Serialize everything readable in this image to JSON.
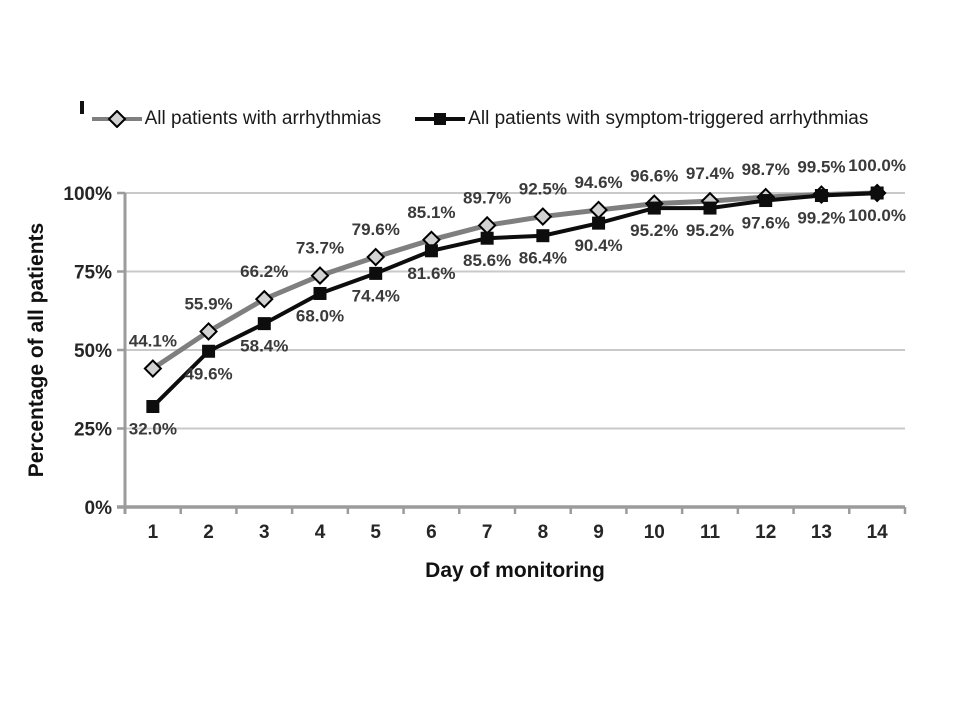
{
  "chart_data": {
    "type": "line",
    "title": "",
    "xlabel": "Day of monitoring",
    "ylabel": "Percentage of all patients",
    "x": [
      1,
      2,
      3,
      4,
      5,
      6,
      7,
      8,
      9,
      10,
      11,
      12,
      13,
      14
    ],
    "ylim": [
      0,
      100
    ],
    "grid": "horizontal",
    "legend_position": "top",
    "axis_color": "#9b9b9b",
    "gridline_color": "#c9c9c9",
    "y_ticks": [
      {
        "value": 0,
        "label": "0%"
      },
      {
        "value": 25,
        "label": "25%"
      },
      {
        "value": 50,
        "label": "50%"
      },
      {
        "value": 75,
        "label": "75%"
      },
      {
        "value": 100,
        "label": "100%"
      }
    ],
    "series": [
      {
        "name": "All patients with arrhythmias",
        "marker": "diamond",
        "color": "#7f7f7f",
        "marker_fill": "#d2d2d2",
        "marker_stroke": "#000000",
        "label_position": "above",
        "values": [
          44.1,
          55.9,
          66.2,
          73.7,
          79.6,
          85.1,
          89.7,
          92.5,
          94.6,
          96.6,
          97.4,
          98.7,
          99.5,
          100.0
        ],
        "labels": [
          "44.1%",
          "55.9%",
          "66.2%",
          "73.7%",
          "79.6%",
          "85.1%",
          "89.7%",
          "92.5%",
          "94.6%",
          "96.6%",
          "97.4%",
          "98.7%",
          "99.5%",
          "100.0%"
        ]
      },
      {
        "name": "All patients with symptom-triggered arrhythmias",
        "marker": "square",
        "color": "#0d0d0d",
        "marker_fill": "#0d0d0d",
        "marker_stroke": "#0d0d0d",
        "label_position": "below",
        "values": [
          32.0,
          49.6,
          58.4,
          68.0,
          74.4,
          81.6,
          85.6,
          86.4,
          90.4,
          95.2,
          95.2,
          97.6,
          99.2,
          100.0
        ],
        "labels": [
          "32.0%",
          "49.6%",
          "58.4%",
          "68.0%",
          "74.4%",
          "81.6%",
          "85.6%",
          "86.4%",
          "90.4%",
          "95.2%",
          "95.2%",
          "97.6%",
          "99.2%",
          "100.0%"
        ]
      }
    ]
  }
}
